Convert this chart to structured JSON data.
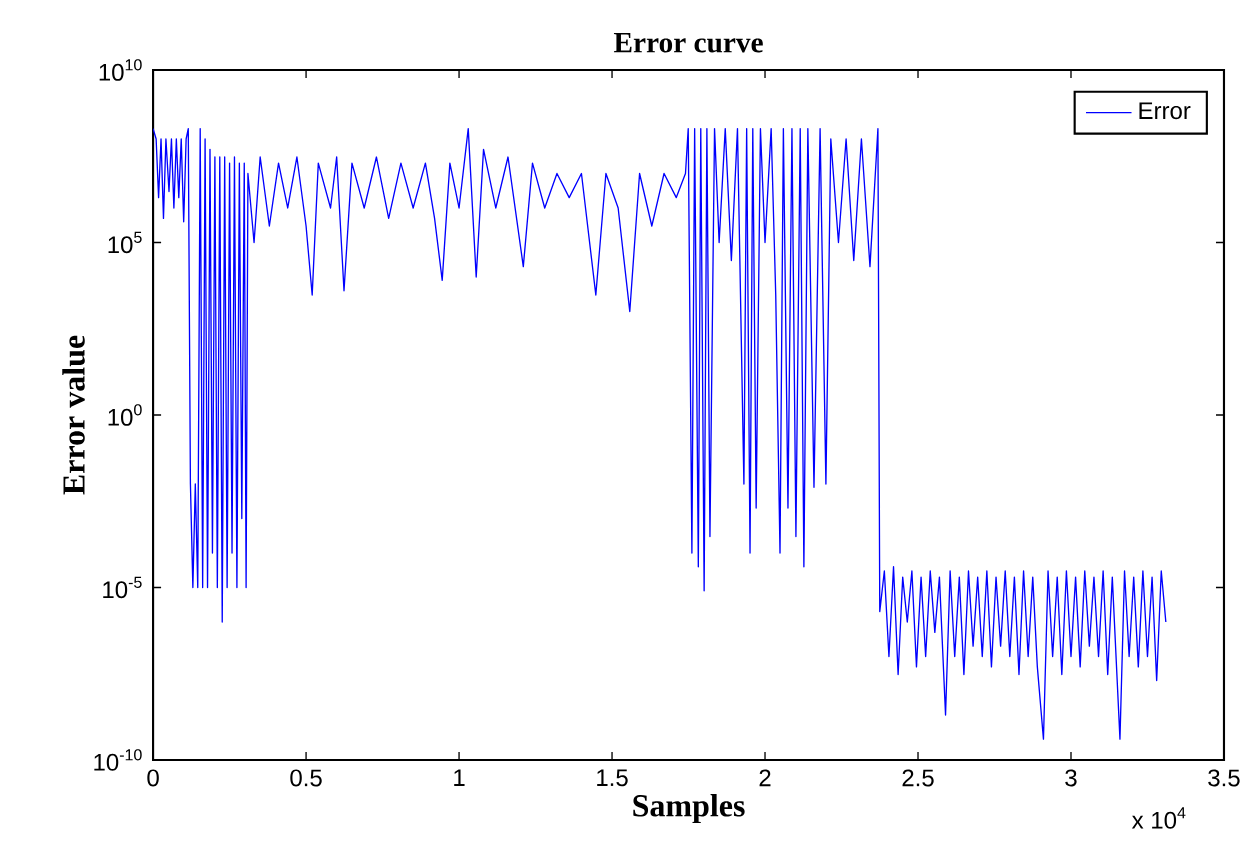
{
  "chart_data": {
    "type": "line",
    "title": "Error curve",
    "xlabel": "Samples",
    "ylabel": "Error value",
    "annotations": [
      "x 10$^{4}$"
    ],
    "x": [
      0,
      0.01,
      0.018,
      0.026,
      0.034,
      0.042,
      0.052,
      0.06,
      0.068,
      0.076,
      0.084,
      0.092,
      0.1,
      0.108,
      0.115,
      0.122,
      0.13,
      0.138,
      0.146,
      0.154,
      0.162,
      0.17,
      0.178,
      0.186,
      0.194,
      0.202,
      0.21,
      0.218,
      0.226,
      0.234,
      0.242,
      0.25,
      0.258,
      0.266,
      0.274,
      0.282,
      0.29,
      0.298,
      0.304,
      0.31,
      0.33,
      0.35,
      0.38,
      0.41,
      0.44,
      0.47,
      0.5,
      0.52,
      0.54,
      0.58,
      0.6,
      0.624,
      0.65,
      0.69,
      0.73,
      0.77,
      0.81,
      0.85,
      0.89,
      0.92,
      0.945,
      0.97,
      1.0,
      1.03,
      1.056,
      1.08,
      1.12,
      1.16,
      1.21,
      1.24,
      1.28,
      1.32,
      1.36,
      1.4,
      1.447,
      1.48,
      1.52,
      1.558,
      1.59,
      1.63,
      1.67,
      1.71,
      1.74,
      1.749,
      1.761,
      1.77,
      1.782,
      1.79,
      1.801,
      1.81,
      1.82,
      1.835,
      1.85,
      1.87,
      1.89,
      1.91,
      1.931,
      1.94,
      1.951,
      1.96,
      1.971,
      1.985,
      2.0,
      2.02,
      2.035,
      2.049,
      2.06,
      2.075,
      2.088,
      2.101,
      2.115,
      2.127,
      2.14,
      2.16,
      2.18,
      2.199,
      2.215,
      2.24,
      2.265,
      2.29,
      2.315,
      2.343,
      2.369,
      2.375,
      2.39,
      2.405,
      2.42,
      2.435,
      2.45,
      2.465,
      2.48,
      2.495,
      2.51,
      2.525,
      2.54,
      2.555,
      2.57,
      2.59,
      2.605,
      2.62,
      2.635,
      2.65,
      2.665,
      2.68,
      2.695,
      2.71,
      2.725,
      2.74,
      2.755,
      2.77,
      2.785,
      2.8,
      2.815,
      2.83,
      2.845,
      2.86,
      2.875,
      2.89,
      2.91,
      2.925,
      2.94,
      2.955,
      2.97,
      2.985,
      3.0,
      3.015,
      3.03,
      3.045,
      3.06,
      3.075,
      3.09,
      3.105,
      3.12,
      3.135,
      3.16,
      3.175,
      3.19,
      3.205,
      3.22,
      3.235,
      3.25,
      3.265,
      3.28,
      3.295,
      3.31
    ],
    "series": [
      {
        "name": "Error",
        "color": "#0000ff",
        "values": [
          200000000.0,
          100000000.0,
          2000000.0,
          100000000.0,
          500000.0,
          100000000.0,
          3000000.0,
          100000000.0,
          1000000.0,
          100000000.0,
          2000000.0,
          100000000.0,
          400000.0,
          100000000.0,
          200000000.0,
          0.01,
          1e-05,
          0.01,
          1e-05,
          200000000.0,
          1e-05,
          100000000.0,
          1e-05,
          50000000.0,
          0.0001,
          30000000.0,
          1e-05,
          30000000.0,
          1e-06,
          30000000.0,
          1e-05,
          20000000.0,
          0.0001,
          30000000.0,
          1e-05,
          20000000.0,
          0.001,
          20000000.0,
          1e-05,
          10000000.0,
          100000.0,
          30000000.0,
          300000.0,
          20000000.0,
          1000000.0,
          30000000.0,
          300000.0,
          3000.0,
          20000000.0,
          1000000.0,
          30000000.0,
          4000.0,
          20000000.0,
          1000000.0,
          30000000.0,
          500000.0,
          20000000.0,
          1000000.0,
          20000000.0,
          500000.0,
          8000.0,
          20000000.0,
          1000000.0,
          200000000.0,
          10000.0,
          50000000.0,
          1000000.0,
          30000000.0,
          20000.0,
          20000000.0,
          1000000.0,
          10000000.0,
          2000000.0,
          10000000.0,
          3000.0,
          10000000.0,
          1000000.0,
          1000.0,
          10000000.0,
          300000.0,
          10000000.0,
          2000000.0,
          10000000.0,
          200000000.0,
          0.0001,
          200000000.0,
          4e-05,
          200000000.0,
          8e-06,
          200000000.0,
          0.0003,
          200000000.0,
          100000.0,
          200000000.0,
          30000.0,
          200000000.0,
          0.01,
          200000000.0,
          0.0001,
          200000000.0,
          0.002,
          200000000.0,
          100000.0,
          200000000.0,
          3000.0,
          0.0001,
          200000000.0,
          0.002,
          200000000.0,
          0.0003,
          200000000.0,
          4e-05,
          200000000.0,
          0.008,
          200000000.0,
          0.01,
          100000000.0,
          100000.0,
          100000000.0,
          30000.0,
          100000000.0,
          20000.0,
          200000000.0,
          2e-06,
          3e-05,
          1e-07,
          4e-05,
          3e-08,
          2e-05,
          1e-06,
          3e-05,
          5e-08,
          2e-05,
          1e-07,
          3e-05,
          5e-07,
          2e-05,
          2e-09,
          3e-05,
          1e-07,
          2e-05,
          3e-08,
          3e-05,
          2e-07,
          2e-05,
          1e-07,
          3e-05,
          5e-08,
          2e-05,
          2e-07,
          3e-05,
          1e-07,
          2e-05,
          3e-08,
          3e-05,
          1e-07,
          2e-05,
          5e-08,
          4e-10,
          3e-05,
          1e-07,
          2e-05,
          3e-08,
          3e-05,
          1e-07,
          2e-05,
          5e-08,
          3e-05,
          2e-07,
          2e-05,
          1e-07,
          3e-05,
          3e-08,
          2e-05,
          4e-10,
          3e-05,
          1e-07,
          2e-05,
          5e-08,
          3e-05,
          1e-07,
          2e-05,
          2e-08,
          3e-05,
          1e-06
        ]
      }
    ],
    "xlim": [
      0,
      3.5
    ],
    "ylim": [
      1e-10,
      10000000000.0
    ],
    "xticks": [
      0,
      0.5,
      1,
      1.5,
      2,
      2.5,
      3,
      3.5
    ],
    "yticks": [
      {
        "value": 1e-10,
        "label": "10$^{-10}$"
      },
      {
        "value": 1e-05,
        "label": "10$^{-5}$"
      },
      {
        "value": 1,
        "label": "10$^{0}$"
      },
      {
        "value": 100000.0,
        "label": "10$^{5}$"
      },
      {
        "value": 10000000000.0,
        "label": "10$^{10}$"
      }
    ],
    "log": "y",
    "legend": "top right",
    "line_style": "solid",
    "marker": "none"
  }
}
